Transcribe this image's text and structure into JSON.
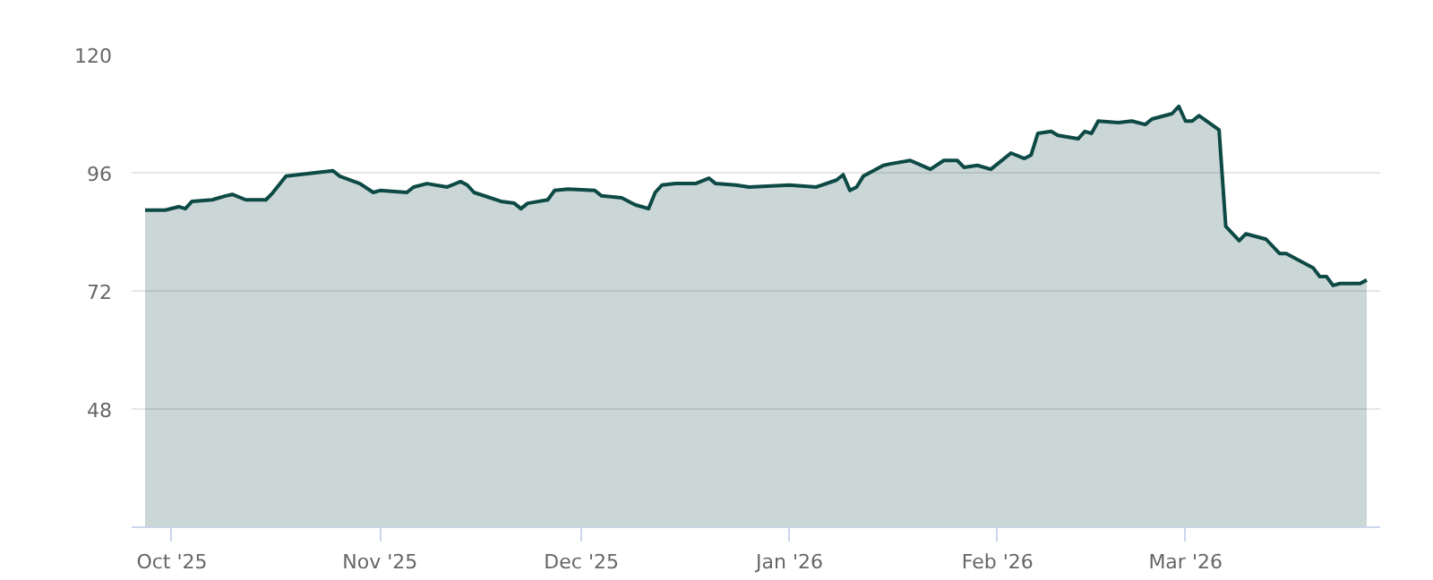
{
  "chart_data": {
    "type": "area",
    "xlim": [
      "2025-09-25",
      "2026-03-30"
    ],
    "ylim": [
      24,
      120
    ],
    "yticks": [
      48,
      72,
      96,
      120
    ],
    "xticks": [
      {
        "value": "2025-10-01",
        "label": "Oct '25"
      },
      {
        "value": "2025-11-01",
        "label": "Nov '25"
      },
      {
        "value": "2025-12-01",
        "label": "Dec '25"
      },
      {
        "value": "2026-01-01",
        "label": "Jan '26"
      },
      {
        "value": "2026-02-01",
        "label": "Feb '26"
      },
      {
        "value": "2026-03-01",
        "label": "Mar '26"
      }
    ],
    "grid": "y",
    "marker": "none",
    "line_style": "solid",
    "x": [
      "2025-09-27",
      "2025-09-30",
      "2025-10-02",
      "2025-10-03",
      "2025-10-04",
      "2025-10-07",
      "2025-10-09",
      "2025-10-10",
      "2025-10-12",
      "2025-10-15",
      "2025-10-16",
      "2025-10-18",
      "2025-10-25",
      "2025-10-26",
      "2025-10-29",
      "2025-10-31",
      "2025-11-01",
      "2025-11-05",
      "2025-11-06",
      "2025-11-08",
      "2025-11-11",
      "2025-11-13",
      "2025-11-14",
      "2025-11-15",
      "2025-11-19",
      "2025-11-21",
      "2025-11-22",
      "2025-11-23",
      "2025-11-26",
      "2025-11-27",
      "2025-11-29",
      "2025-12-03",
      "2025-12-04",
      "2025-12-07",
      "2025-12-09",
      "2025-12-11",
      "2025-12-12",
      "2025-12-13",
      "2025-12-15",
      "2025-12-18",
      "2025-12-20",
      "2025-12-21",
      "2025-12-24",
      "2025-12-26",
      "2026-01-01",
      "2026-01-05",
      "2026-01-08",
      "2026-01-09",
      "2026-01-10",
      "2026-01-11",
      "2026-01-12",
      "2026-01-15",
      "2026-01-16",
      "2026-01-19",
      "2026-01-22",
      "2026-01-24",
      "2026-01-26",
      "2026-01-27",
      "2026-01-29",
      "2026-01-31",
      "2026-02-03",
      "2026-02-05",
      "2026-02-06",
      "2026-02-07",
      "2026-02-09",
      "2026-02-10",
      "2026-02-13",
      "2026-02-14",
      "2026-02-15",
      "2026-02-16",
      "2026-02-19",
      "2026-02-21",
      "2026-02-23",
      "2026-02-24",
      "2026-02-27",
      "2026-02-28",
      "2026-03-01",
      "2026-03-02",
      "2026-03-03",
      "2026-03-06",
      "2026-03-07",
      "2026-03-09",
      "2026-03-10",
      "2026-03-13",
      "2026-03-15",
      "2026-03-16",
      "2026-03-20",
      "2026-03-21",
      "2026-03-22",
      "2026-03-23",
      "2026-03-24",
      "2026-03-27",
      "2026-03-28"
    ],
    "series": [
      {
        "color": "#0d4a45",
        "values": [
          88.4,
          88.4,
          89.1,
          88.7,
          90.2,
          90.5,
          91.3,
          91.6,
          90.5,
          90.5,
          91.9,
          95.3,
          96.4,
          95.3,
          93.8,
          92.0,
          92.4,
          92.0,
          93.1,
          93.8,
          93.1,
          94.2,
          93.5,
          92.0,
          90.2,
          89.8,
          88.7,
          89.8,
          90.5,
          92.4,
          92.7,
          92.4,
          91.3,
          90.9,
          89.5,
          88.7,
          92.0,
          93.5,
          93.8,
          93.8,
          94.9,
          93.8,
          93.5,
          93.1,
          93.5,
          93.1,
          94.5,
          95.6,
          92.4,
          93.1,
          95.3,
          97.5,
          97.8,
          98.5,
          96.7,
          98.5,
          98.5,
          97.1,
          97.5,
          96.7,
          100.0,
          98.9,
          99.6,
          104.0,
          104.4,
          103.6,
          102.9,
          104.4,
          104.0,
          106.5,
          106.2,
          106.5,
          105.8,
          106.9,
          108.0,
          109.5,
          106.5,
          106.5,
          107.6,
          104.7,
          85.1,
          82.2,
          83.6,
          82.5,
          79.6,
          79.6,
          76.7,
          74.9,
          74.9,
          73.1,
          73.5,
          73.5,
          74.2
        ]
      }
    ]
  }
}
